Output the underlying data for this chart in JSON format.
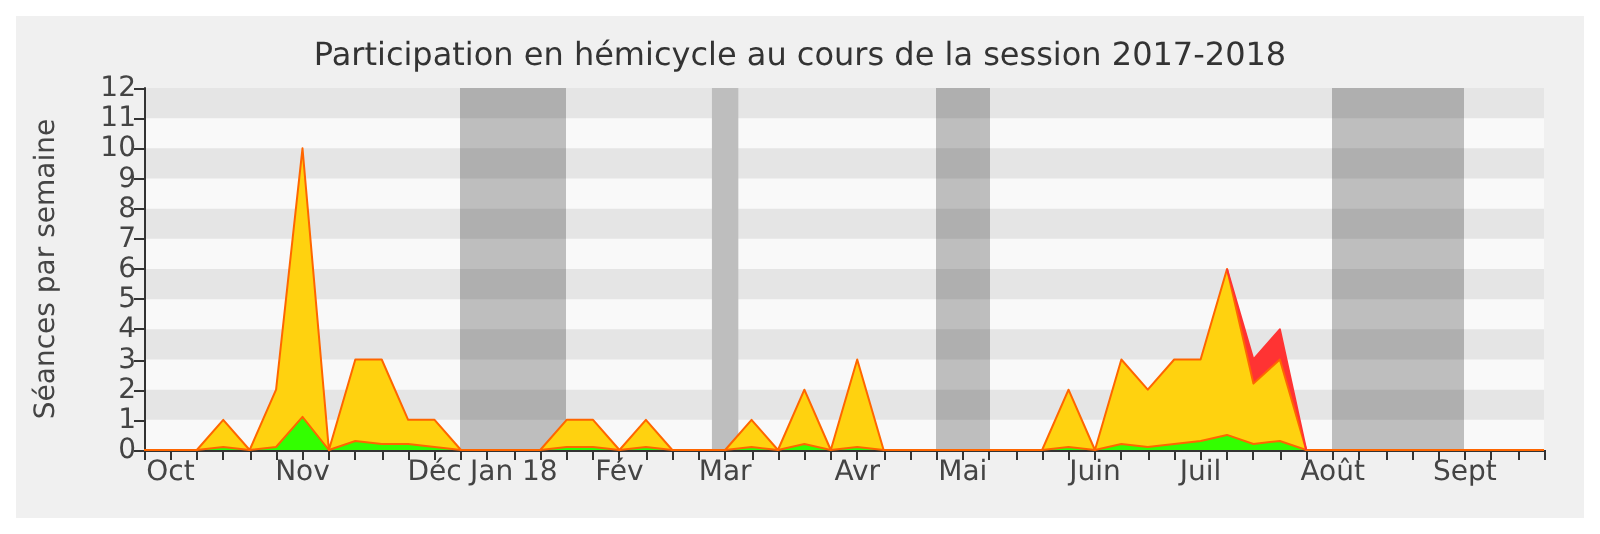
{
  "chart_data": {
    "type": "area",
    "stacked": true,
    "title": "Participation en hémicycle au cours de la session 2017-2018",
    "ylabel": "Séances par semaine",
    "categories": [
      null,
      "Oct",
      null,
      null,
      null,
      null,
      "Nov",
      null,
      null,
      null,
      null,
      "Déc",
      null,
      null,
      "Jan 18",
      null,
      null,
      null,
      "Fév",
      null,
      null,
      null,
      "Mar",
      null,
      null,
      null,
      null,
      "Avr",
      null,
      null,
      null,
      "Mai",
      null,
      null,
      null,
      null,
      "Juin",
      null,
      null,
      null,
      "Juil",
      null,
      null,
      null,
      null,
      "Août",
      null,
      null,
      null,
      null,
      "Sept",
      null,
      null,
      null
    ],
    "series": [
      {
        "color": "#33ff00",
        "values": [
          0,
          0,
          0,
          0.1,
          0,
          0.1,
          1.1,
          0,
          0.3,
          0.2,
          0.2,
          0.1,
          0,
          0,
          0,
          0,
          0.1,
          0.1,
          0,
          0.1,
          0,
          0,
          0,
          0.1,
          0,
          0.2,
          0,
          0.1,
          0,
          0,
          0,
          0,
          0,
          0,
          0,
          0.1,
          0,
          0.2,
          0.1,
          0.2,
          0.3,
          0.5,
          0.2,
          0.3,
          0,
          0,
          0,
          0,
          0,
          0,
          0,
          0,
          0,
          0
        ]
      },
      {
        "color": "#ffd20f",
        "values": [
          0,
          0,
          0,
          0.9,
          0,
          1.9,
          8.9,
          0,
          2.7,
          2.8,
          0.8,
          0.9,
          0,
          0,
          0,
          0,
          0.9,
          0.9,
          0,
          0.9,
          0,
          0,
          0,
          0.9,
          0,
          1.8,
          0,
          2.9,
          0,
          0,
          0,
          0,
          0,
          0,
          0,
          1.9,
          0,
          2.8,
          1.9,
          2.8,
          2.7,
          5.5,
          2.0,
          2.7,
          0,
          0,
          0,
          0,
          0,
          0,
          0,
          0,
          0,
          0
        ]
      },
      {
        "color": "#ff3333",
        "values": [
          null,
          null,
          null,
          null,
          null,
          null,
          null,
          null,
          null,
          null,
          null,
          null,
          null,
          null,
          null,
          null,
          null,
          null,
          null,
          null,
          null,
          null,
          null,
          null,
          null,
          null,
          null,
          null,
          null,
          null,
          null,
          null,
          null,
          null,
          null,
          null,
          null,
          null,
          null,
          null,
          null,
          0,
          0.8,
          1.0,
          0,
          null,
          null,
          null,
          null,
          null,
          null,
          null,
          null,
          null
        ]
      }
    ],
    "bands": [
      {
        "axis": "x",
        "from": "Mar",
        "to": "Mar",
        "color": "#bebebe"
      }
    ],
    "ylim": [
      0,
      12
    ],
    "yticks": [
      0,
      1,
      2,
      3,
      4,
      5,
      6,
      7,
      8,
      9,
      10,
      11,
      12
    ]
  }
}
